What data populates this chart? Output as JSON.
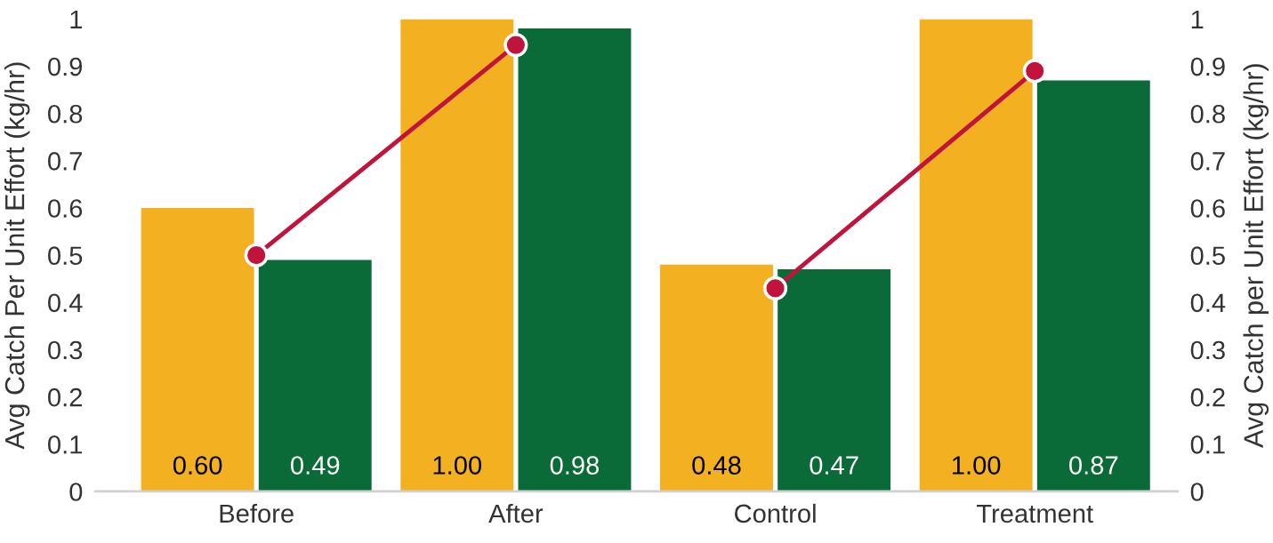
{
  "chart_data": {
    "type": "bar",
    "ylabel": "Avg Catch Per Unit Effort (kg/hr)",
    "y2label": "Avg Catch per Unit Effort (kg/hr)",
    "categories": [
      "Before",
      "After",
      "Control",
      "Treatment"
    ],
    "series": [
      {
        "color": "#f3b021",
        "values": [
          0.6,
          1.0,
          0.48,
          1.0
        ],
        "value_labels": [
          "0.60",
          "1.00",
          "0.48",
          "1.00"
        ]
      },
      {
        "color": "#0b6b38",
        "values": [
          0.49,
          0.98,
          0.47,
          0.87
        ],
        "value_labels": [
          "0.49",
          "0.98",
          "0.47",
          "0.87"
        ]
      },
      {
        "type": "line",
        "color": "#c0143c",
        "values": [
          0.5,
          0.945,
          null,
          null
        ],
        "marker": "circle"
      },
      {
        "type": "line",
        "color": "#c0143c",
        "values": [
          null,
          null,
          0.43,
          0.89
        ],
        "marker": "circle"
      }
    ],
    "ylim": [
      0,
      1
    ],
    "yticks": [
      0,
      0.1,
      0.2,
      0.3,
      0.4,
      0.5,
      0.6,
      0.7,
      0.8,
      0.9,
      1
    ],
    "y2lim": [
      0,
      1
    ],
    "y2ticks": [
      0,
      0.1,
      0.2,
      0.3,
      0.4,
      0.5,
      0.6,
      0.7,
      0.8,
      0.9,
      1
    ],
    "grid": false
  }
}
